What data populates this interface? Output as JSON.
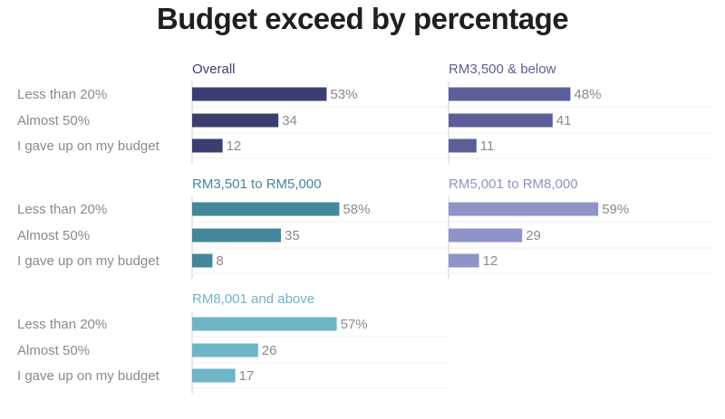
{
  "chart_data": {
    "type": "bar",
    "title": "Budget exceed by percentage",
    "categories": [
      "Less than 20%",
      "Almost 50%",
      "I gave up on my budget"
    ],
    "value_suffix_first": "%",
    "xlim": [
      0,
      100
    ],
    "panels": [
      {
        "name": "Overall",
        "color": "#3b3f70",
        "values": [
          53,
          34,
          12
        ]
      },
      {
        "name": "RM3,500 & below",
        "color": "#5c5f97",
        "values": [
          48,
          41,
          11
        ]
      },
      {
        "name": "RM3,501 to RM5,000",
        "color": "#45879a",
        "values": [
          58,
          35,
          8
        ]
      },
      {
        "name": "RM5,001 to RM8,000",
        "color": "#8f93c8",
        "values": [
          59,
          29,
          12
        ]
      },
      {
        "name": "RM8,001 and above",
        "color": "#6fb4c7",
        "values": [
          57,
          26,
          17
        ]
      }
    ]
  }
}
